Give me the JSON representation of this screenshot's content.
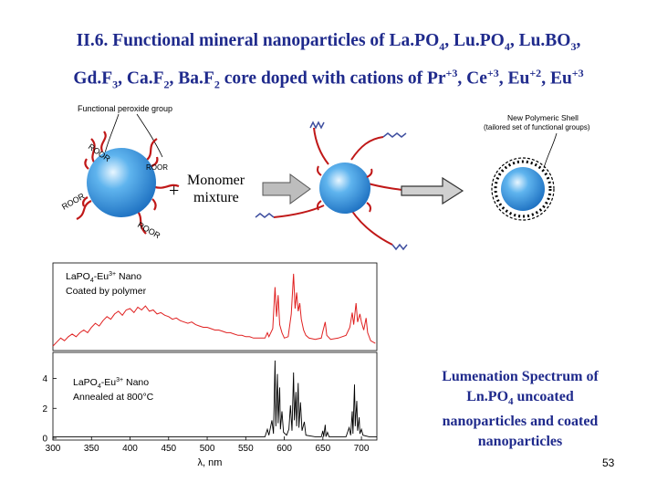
{
  "title": {
    "line1_prefix": "II.6. Functional mineral nanoparticles of La.PO",
    "sub1": "4",
    "line1_mid1": ", Lu.PO",
    "sub2": "4",
    "line1_mid2": ", Lu.BO",
    "sub3": "3",
    "line1_end": ",",
    "line2_a": "Gd.F",
    "sub4": "3",
    "line2_b": ", Ca.F",
    "sub5": "2",
    "line2_c": ", Ba.F",
    "sub6": "2",
    "line2_d": " core doped with cations of Pr",
    "sup1": "+3",
    "line2_e": ", Ce",
    "sup2": "+3",
    "line2_f": ", Eu",
    "sup3": "+2",
    "line2_g": ", Eu",
    "sup4": "+3"
  },
  "diagram": {
    "functional_group_label": "Functional peroxide group",
    "group_label": "ROOR",
    "plus": "+",
    "monomer_line1": "Monomer",
    "monomer_line2": "mixture",
    "shell_line1": "New Polymeric Shell",
    "shell_line2": "(tailored set of functional groups)"
  },
  "chart_data": {
    "type": "line",
    "xlabel": "λ, nm",
    "x_ticks": [
      300,
      350,
      400,
      450,
      500,
      550,
      600,
      650,
      700
    ],
    "xlim": [
      300,
      720
    ],
    "top_panel": {
      "name": "LaPO4-Eu3+ Nano, Coated by polymer",
      "label_line1": "LaPO",
      "label_sub": "4",
      "label_mid": "-Eu",
      "label_sup": "3+",
      "label_end": " Nano",
      "label_line2": "Coated by polymer",
      "color": "#e02020",
      "points": [
        [
          300,
          0.2
        ],
        [
          305,
          0.5
        ],
        [
          310,
          0.8
        ],
        [
          315,
          0.6
        ],
        [
          320,
          0.9
        ],
        [
          325,
          1.1
        ],
        [
          330,
          0.9
        ],
        [
          335,
          1.2
        ],
        [
          340,
          1.4
        ],
        [
          345,
          1.2
        ],
        [
          350,
          1.6
        ],
        [
          355,
          1.9
        ],
        [
          360,
          1.7
        ],
        [
          365,
          2.1
        ],
        [
          370,
          2.4
        ],
        [
          375,
          2.2
        ],
        [
          380,
          2.6
        ],
        [
          385,
          2.8
        ],
        [
          390,
          2.5
        ],
        [
          395,
          2.9
        ],
        [
          400,
          3.0
        ],
        [
          405,
          2.7
        ],
        [
          410,
          3.1
        ],
        [
          415,
          2.9
        ],
        [
          420,
          3.2
        ],
        [
          425,
          2.8
        ],
        [
          430,
          2.9
        ],
        [
          435,
          2.6
        ],
        [
          440,
          2.7
        ],
        [
          445,
          2.5
        ],
        [
          450,
          2.4
        ],
        [
          455,
          2.2
        ],
        [
          460,
          2.3
        ],
        [
          465,
          2.1
        ],
        [
          470,
          2.0
        ],
        [
          475,
          1.9
        ],
        [
          480,
          2.0
        ],
        [
          485,
          1.8
        ],
        [
          490,
          1.7
        ],
        [
          495,
          1.6
        ],
        [
          500,
          1.6
        ],
        [
          505,
          1.5
        ],
        [
          510,
          1.4
        ],
        [
          515,
          1.4
        ],
        [
          520,
          1.3
        ],
        [
          525,
          1.2
        ],
        [
          530,
          1.2
        ],
        [
          535,
          1.1
        ],
        [
          540,
          1.0
        ],
        [
          545,
          1.0
        ],
        [
          550,
          0.9
        ],
        [
          555,
          0.9
        ],
        [
          560,
          0.8
        ],
        [
          565,
          0.8
        ],
        [
          570,
          0.8
        ],
        [
          575,
          0.8
        ],
        [
          578,
          1.2
        ],
        [
          580,
          0.9
        ],
        [
          585,
          1.5
        ],
        [
          588,
          4.6
        ],
        [
          590,
          2.4
        ],
        [
          592,
          4.0
        ],
        [
          594,
          1.8
        ],
        [
          597,
          1.2
        ],
        [
          600,
          0.8
        ],
        [
          605,
          0.9
        ],
        [
          609,
          2.6
        ],
        [
          612,
          5.6
        ],
        [
          614,
          3.0
        ],
        [
          616,
          4.2
        ],
        [
          618,
          2.8
        ],
        [
          620,
          3.4
        ],
        [
          622,
          2.2
        ],
        [
          625,
          1.4
        ],
        [
          628,
          1.0
        ],
        [
          632,
          0.8
        ],
        [
          640,
          0.7
        ],
        [
          648,
          0.8
        ],
        [
          650,
          1.3
        ],
        [
          653,
          2.0
        ],
        [
          655,
          1.0
        ],
        [
          660,
          0.7
        ],
        [
          670,
          0.8
        ],
        [
          680,
          1.0
        ],
        [
          685,
          1.6
        ],
        [
          688,
          2.7
        ],
        [
          690,
          1.8
        ],
        [
          693,
          3.4
        ],
        [
          695,
          2.0
        ],
        [
          698,
          2.6
        ],
        [
          700,
          2.0
        ],
        [
          703,
          1.4
        ],
        [
          706,
          2.3
        ],
        [
          708,
          1.2
        ],
        [
          712,
          0.6
        ],
        [
          718,
          0.4
        ]
      ]
    },
    "bottom_panel": {
      "name": "LaPO4-Eu3+ Nano, Annealed at 800°C",
      "label_line1": "LaPO",
      "label_sub": "4",
      "label_mid": "-Eu",
      "label_sup": "3+",
      "label_end": " Nano",
      "label_line2": "Annealed at 800°C",
      "color": "#000000",
      "y_ticks": [
        0,
        2,
        4
      ],
      "ylim": [
        0,
        5.5
      ],
      "points": [
        [
          300,
          0.1
        ],
        [
          400,
          0.1
        ],
        [
          500,
          0.1
        ],
        [
          560,
          0.1
        ],
        [
          575,
          0.1
        ],
        [
          578,
          0.6
        ],
        [
          580,
          0.2
        ],
        [
          584,
          1.2
        ],
        [
          586,
          0.3
        ],
        [
          588,
          5.2
        ],
        [
          589,
          0.8
        ],
        [
          591,
          4.3
        ],
        [
          592,
          1.0
        ],
        [
          594,
          3.4
        ],
        [
          595,
          0.6
        ],
        [
          597,
          1.8
        ],
        [
          599,
          0.4
        ],
        [
          603,
          0.2
        ],
        [
          606,
          0.6
        ],
        [
          608,
          2.2
        ],
        [
          610,
          0.5
        ],
        [
          612,
          4.4
        ],
        [
          613,
          1.2
        ],
        [
          615,
          3.1
        ],
        [
          616,
          0.8
        ],
        [
          618,
          3.7
        ],
        [
          619,
          0.7
        ],
        [
          621,
          2.4
        ],
        [
          623,
          0.5
        ],
        [
          626,
          1.1
        ],
        [
          628,
          0.2
        ],
        [
          640,
          0.1
        ],
        [
          648,
          0.1
        ],
        [
          650,
          0.5
        ],
        [
          651,
          0.1
        ],
        [
          653,
          0.9
        ],
        [
          654,
          0.1
        ],
        [
          656,
          0.4
        ],
        [
          658,
          0.1
        ],
        [
          680,
          0.1
        ],
        [
          684,
          0.7
        ],
        [
          686,
          0.2
        ],
        [
          688,
          1.8
        ],
        [
          689,
          0.3
        ],
        [
          691,
          3.6
        ],
        [
          692,
          0.8
        ],
        [
          694,
          2.5
        ],
        [
          695,
          0.5
        ],
        [
          697,
          1.4
        ],
        [
          698,
          0.3
        ],
        [
          700,
          0.6
        ],
        [
          702,
          0.2
        ],
        [
          710,
          0.1
        ],
        [
          720,
          0.1
        ]
      ]
    }
  },
  "caption": {
    "line1": "Lumenation Spectrum of",
    "line2a": "Ln.PO",
    "line2_sub": "4",
    "line2b": " uncoated",
    "line3": "nanoparticles and coated",
    "line4": "nanoparticles"
  },
  "page_number": "53",
  "colors": {
    "title": "#1f2a8c",
    "sphere": "#2f8fe0",
    "arms": "#c01818",
    "arrow": "#b8b8b8"
  }
}
